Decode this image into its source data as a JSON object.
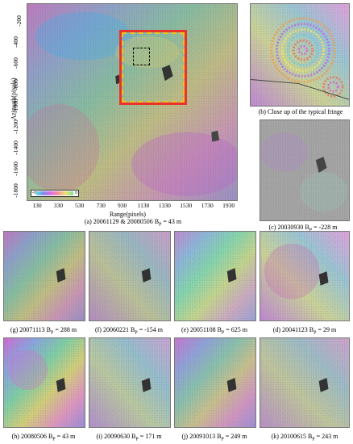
{
  "main": {
    "y_axis_label": "Azimuth(pixels)",
    "x_axis_label": "Range(pixels)",
    "y_ticks": [
      "-200",
      "-400",
      "-600",
      "-800",
      "-1000",
      "-1200",
      "-1400",
      "-1600",
      "-1800"
    ],
    "x_ticks": [
      "130",
      "330",
      "530",
      "730",
      "930",
      "1130",
      "1330",
      "1530",
      "1730",
      "1930"
    ],
    "colorbar": {
      "left_symbol": "-π",
      "right_symbol": "π"
    },
    "caption_prefix": "(a) 20061129 & 20080506 B",
    "caption_suffix": " = 43 m"
  },
  "closeup": {
    "caption": "(b) Close up of the typical fringe"
  },
  "panel_c": {
    "caption_prefix": "(c) 20030930 B",
    "caption_suffix": " = -228 m"
  },
  "row1": [
    {
      "prefix": "(g) 20071113 B",
      "suffix": " = 288 m"
    },
    {
      "prefix": "(f) 20060221 B",
      "suffix": " = -154 m"
    },
    {
      "prefix": "(e) 20051108 B",
      "suffix": " = 625 m"
    },
    {
      "prefix": "(d) 20041123 B",
      "suffix": " = 29 m"
    }
  ],
  "row2": [
    {
      "prefix": "(h) 20080506 B",
      "suffix": " = 43 m"
    },
    {
      "prefix": "(i) 20090630 B",
      "suffix": " = 171 m"
    },
    {
      "prefix": "(j) 20091013 B",
      "suffix": " = 249 m"
    },
    {
      "prefix": "(k) 20100615 B",
      "suffix": " = 243 m"
    }
  ],
  "subscript": "P",
  "colors": {
    "highlight_box": "#e8342a",
    "highlight_dash": "#f2c21b",
    "inner_box": "#000000"
  }
}
